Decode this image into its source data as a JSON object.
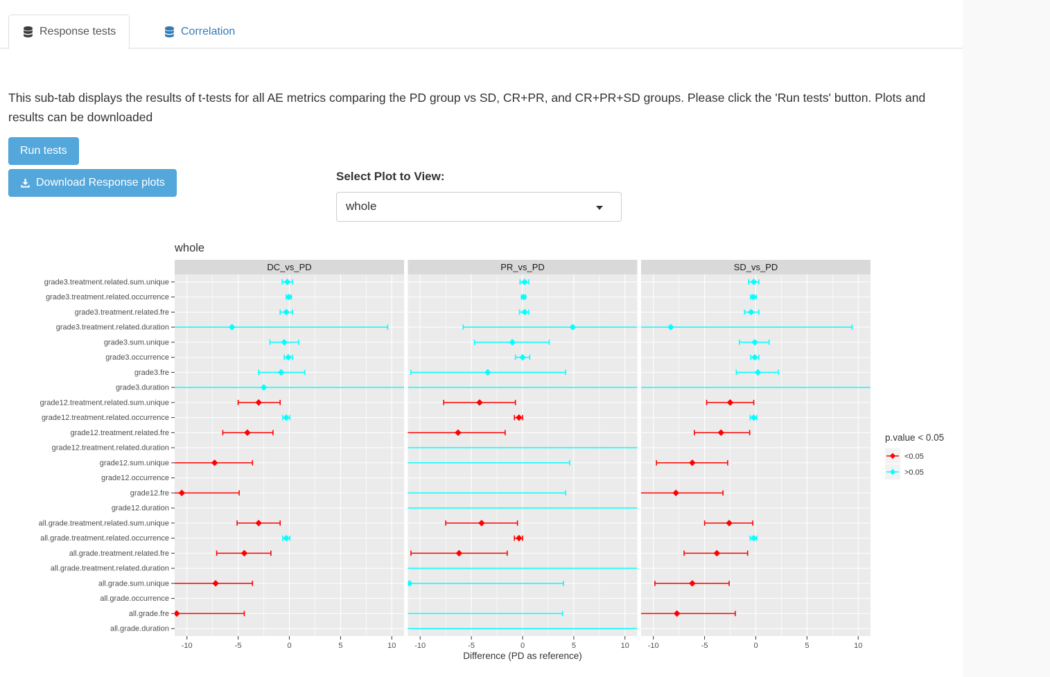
{
  "tabs": [
    {
      "label": "Response tests",
      "active": true
    },
    {
      "label": "Correlation",
      "active": false
    }
  ],
  "description": "This sub-tab displays the results of t-tests for all AE metrics comparing the PD group vs SD, CR+PR, and CR+PR+SD groups. Please click the 'Run tests' button. Plots and results can be downloaded",
  "buttons": {
    "run_tests": "Run tests",
    "download": "Download Response plots"
  },
  "select_plot": {
    "label": "Select Plot to View:",
    "value": "whole"
  },
  "colors": {
    "accent": "#54A7DB",
    "link": "#337AB7",
    "sig": "#FF0000",
    "ns": "#00FFFF",
    "panel_bg": "#EBEBEB",
    "strip_bg": "#D9D9D9"
  },
  "chart_data": {
    "type": "scatter",
    "subtype": "faceted-forest-plot",
    "title": "whole",
    "xlabel": "Difference (PD as reference)",
    "x_ticks": [
      -10,
      -5,
      0,
      5,
      10
    ],
    "x_minor_ticks": [
      -7.5,
      -2.5,
      2.5,
      7.5
    ],
    "xlim": [
      -11.2,
      11.2
    ],
    "point_colors": {
      "r": "#FF0000",
      "c": "#00FFFF"
    },
    "legend": {
      "title": "p.value < 0.05",
      "items": [
        {
          "label": "<0.05",
          "key": "r",
          "color": "#FF0000"
        },
        {
          "label": ">0.05",
          "key": "c",
          "color": "#00FFFF"
        }
      ]
    },
    "categories": [
      "grade3.treatment.related.sum.unique",
      "grade3.treatment.related.occurrence",
      "grade3.treatment.related.fre",
      "grade3.treatment.related.duration",
      "grade3.sum.unique",
      "grade3.occurrence",
      "grade3.fre",
      "grade3.duration",
      "grade12.treatment.related.sum.unique",
      "grade12.treatment.related.occurrence",
      "grade12.treatment.related.fre",
      "grade12.treatment.related.duration",
      "grade12.sum.unique",
      "grade12.occurrence",
      "grade12.fre",
      "grade12.duration",
      "all.grade.treatment.related.sum.unique",
      "all.grade.treatment.related.occurrence",
      "all.grade.treatment.related.fre",
      "all.grade.treatment.related.duration",
      "all.grade.sum.unique",
      "all.grade.occurrence",
      "all.grade.fre",
      "all.grade.duration"
    ],
    "series": [
      {
        "name": "DC_vs_PD",
        "points": [
          [
            -0.7,
            -0.2,
            0.3,
            "c"
          ],
          [
            -0.3,
            -0.05,
            0.2,
            "c"
          ],
          [
            -0.9,
            -0.3,
            0.3,
            "c"
          ],
          [
            -11.2,
            -5.6,
            9.6,
            "c"
          ],
          [
            -1.9,
            -0.5,
            0.9,
            "c"
          ],
          [
            -0.5,
            -0.1,
            0.3,
            "c"
          ],
          [
            -3.0,
            -0.8,
            1.5,
            "c"
          ],
          [
            -11.2,
            -2.5,
            11.2,
            "c"
          ],
          [
            -5.0,
            -3.0,
            -0.9,
            "r"
          ],
          [
            -0.65,
            -0.3,
            0.05,
            "c"
          ],
          [
            -6.5,
            -4.1,
            -1.6,
            "r"
          ],
          null,
          [
            -11.2,
            -7.3,
            -3.6,
            "r"
          ],
          null,
          [
            -11.2,
            -10.5,
            -4.9,
            "r"
          ],
          null,
          [
            -5.1,
            -3.0,
            -0.9,
            "r"
          ],
          [
            -0.65,
            -0.3,
            0.05,
            "c"
          ],
          [
            -7.1,
            -4.4,
            -1.8,
            "r"
          ],
          null,
          [
            -11.2,
            -7.2,
            -3.6,
            "r"
          ],
          null,
          [
            -11.2,
            -11.0,
            -4.4,
            "r"
          ],
          null
        ]
      },
      {
        "name": "PR_vs_PD",
        "points": [
          [
            -0.25,
            0.2,
            0.6,
            "c"
          ],
          [
            -0.1,
            0.1,
            0.3,
            "c"
          ],
          [
            -0.3,
            0.2,
            0.6,
            "c"
          ],
          [
            -5.8,
            4.9,
            11.2,
            "c"
          ],
          [
            -4.7,
            -1.0,
            2.6,
            "c"
          ],
          [
            -0.7,
            0.0,
            0.7,
            "c"
          ],
          [
            -10.9,
            -3.4,
            4.2,
            "c"
          ],
          [
            -11.2,
            null,
            11.2,
            "c"
          ],
          [
            -7.7,
            -4.2,
            -0.7,
            "r"
          ],
          [
            -0.8,
            -0.35,
            0.0,
            "r"
          ],
          [
            -11.2,
            -6.3,
            -1.7,
            "r"
          ],
          [
            -11.2,
            null,
            11.2,
            "c"
          ],
          [
            -11.2,
            null,
            4.6,
            "c"
          ],
          null,
          [
            -11.2,
            null,
            4.2,
            "c"
          ],
          [
            -11.2,
            null,
            11.2,
            "c"
          ],
          [
            -7.5,
            -4.0,
            -0.5,
            "r"
          ],
          [
            -0.8,
            -0.35,
            0.0,
            "r"
          ],
          [
            -10.9,
            -6.2,
            -1.5,
            "r"
          ],
          [
            -11.2,
            null,
            11.2,
            "c"
          ],
          [
            -11.2,
            -11.05,
            4.0,
            "c"
          ],
          null,
          [
            -11.2,
            null,
            3.9,
            "c"
          ],
          [
            -11.2,
            null,
            11.2,
            "c"
          ]
        ]
      },
      {
        "name": "SD_vs_PD",
        "points": [
          [
            -0.7,
            -0.2,
            0.3,
            "c"
          ],
          [
            -0.5,
            -0.25,
            0.05,
            "c"
          ],
          [
            -1.1,
            -0.45,
            0.3,
            "c"
          ],
          [
            -11.2,
            -8.3,
            9.4,
            "c"
          ],
          [
            -1.6,
            -0.1,
            1.3,
            "c"
          ],
          [
            -0.5,
            -0.1,
            0.3,
            "c"
          ],
          [
            -1.9,
            0.2,
            2.2,
            "c"
          ],
          [
            -11.2,
            null,
            11.2,
            "c"
          ],
          [
            -4.8,
            -2.5,
            -0.2,
            "r"
          ],
          [
            -0.55,
            -0.2,
            0.1,
            "c"
          ],
          [
            -6.0,
            -3.4,
            -0.6,
            "r"
          ],
          null,
          [
            -9.7,
            -6.2,
            -2.75,
            "r"
          ],
          null,
          [
            -11.2,
            -7.8,
            -3.2,
            "r"
          ],
          null,
          [
            -5.0,
            -2.6,
            -0.3,
            "r"
          ],
          [
            -0.55,
            -0.2,
            0.1,
            "c"
          ],
          [
            -7.0,
            -3.8,
            -0.8,
            "r"
          ],
          null,
          [
            -9.85,
            -6.2,
            -2.6,
            "r"
          ],
          null,
          [
            -11.2,
            -7.7,
            -2.0,
            "r"
          ],
          null
        ]
      }
    ]
  }
}
